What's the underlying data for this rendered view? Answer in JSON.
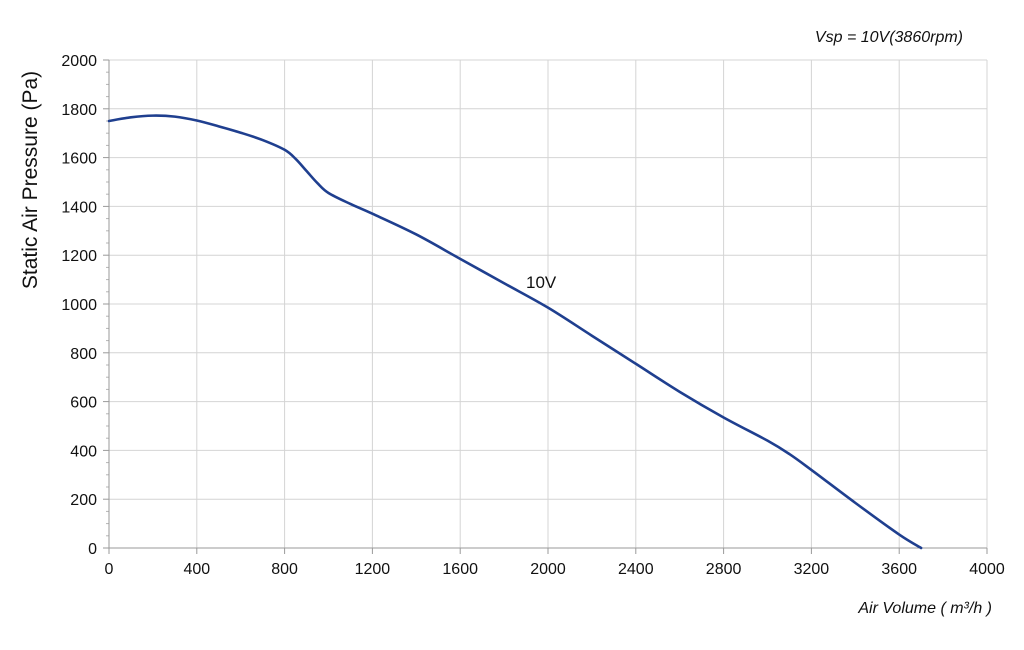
{
  "chart_data": {
    "type": "line",
    "title": "",
    "annotation_top_right": "Vsp = 10V(3860rpm)",
    "xlabel": "Air Volume ( m³/h )",
    "ylabel": "Static Air Pressure  (Pa)",
    "xlim": [
      0,
      4000
    ],
    "ylim": [
      0,
      2000
    ],
    "x_ticks": [
      0,
      400,
      800,
      1200,
      1600,
      2000,
      2400,
      2800,
      3200,
      3600,
      4000
    ],
    "y_ticks": [
      0,
      200,
      400,
      600,
      800,
      1000,
      1200,
      1400,
      1600,
      1800,
      2000
    ],
    "grid": true,
    "series": [
      {
        "name": "10V",
        "color": "#1f3f8f",
        "x": [
          0,
          100,
          200,
          300,
          400,
          500,
          600,
          700,
          800,
          850,
          900,
          950,
          1000,
          1100,
          1200,
          1400,
          1600,
          1800,
          2000,
          2200,
          2400,
          2600,
          2800,
          3000,
          3100,
          3200,
          3400,
          3600,
          3700
        ],
        "y": [
          1750,
          1765,
          1772,
          1768,
          1752,
          1728,
          1702,
          1672,
          1632,
          1595,
          1545,
          1495,
          1455,
          1410,
          1370,
          1285,
          1185,
          1085,
          985,
          870,
          755,
          640,
          535,
          440,
          385,
          320,
          185,
          55,
          0
        ]
      }
    ]
  }
}
